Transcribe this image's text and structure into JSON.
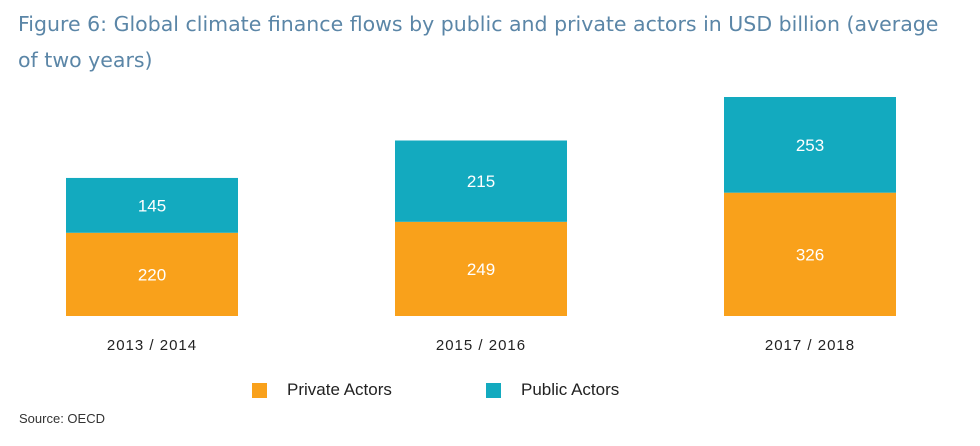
{
  "title": "Figure 6: Global climate finance flows by public and private actors in USD billion (average of two years)",
  "source": "Source: OECD",
  "colors": {
    "private": "#f9a11b",
    "public": "#13aabf"
  },
  "legend": {
    "private_label": "Private Actors",
    "public_label": "Public Actors"
  },
  "chart_data": {
    "type": "bar",
    "stacked": true,
    "categories": [
      "2013 / 2014",
      "2015 / 2016",
      "2017 / 2018"
    ],
    "series": [
      {
        "name": "Private Actors",
        "values": [
          220,
          249,
          326
        ]
      },
      {
        "name": "Public Actors",
        "values": [
          145,
          215,
          253
        ]
      }
    ],
    "title": "Figure 6: Global climate finance flows by public and private actors in USD billion (average of two years)",
    "xlabel": "",
    "ylabel": "",
    "grid": false,
    "legend_position": "bottom"
  }
}
